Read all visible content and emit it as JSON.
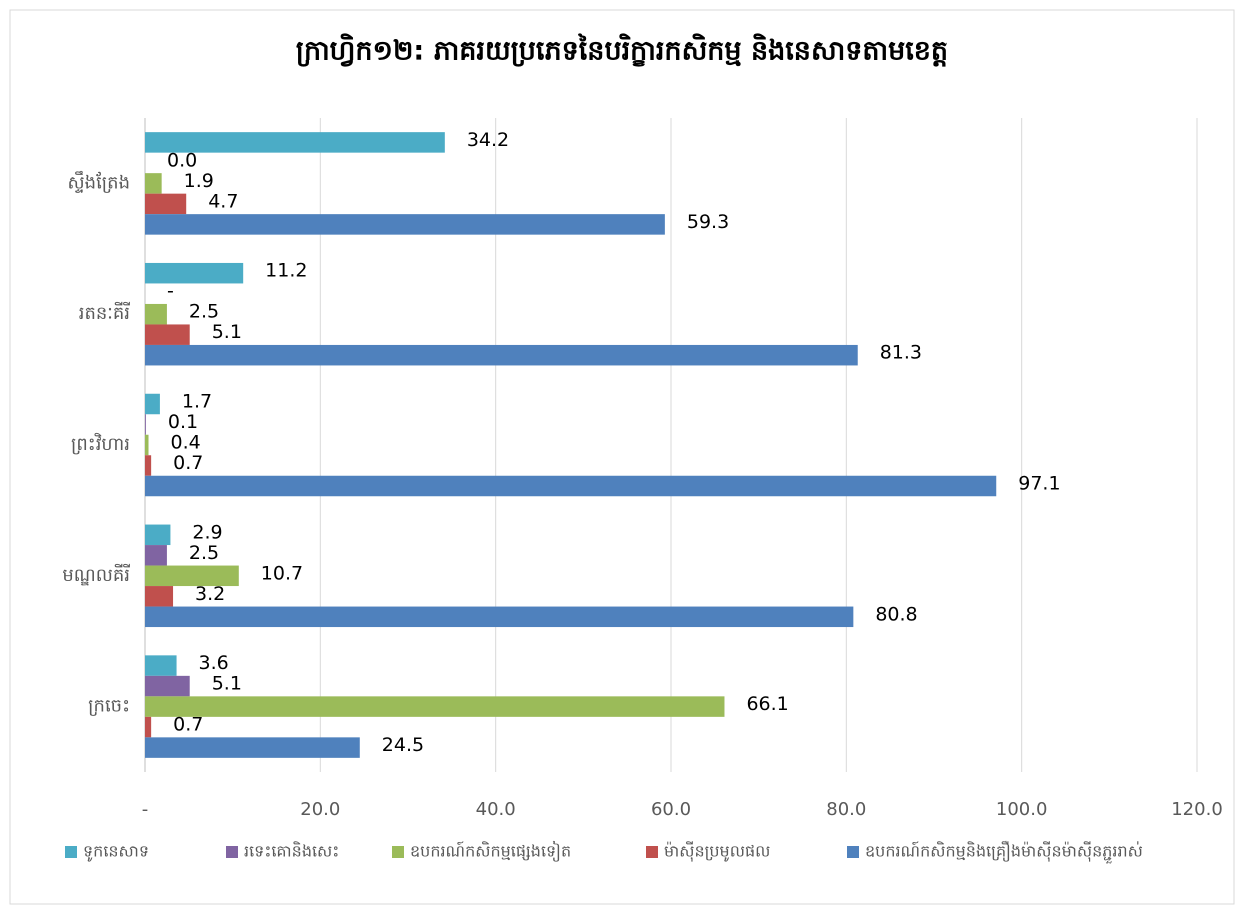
{
  "chart_data": {
    "type": "hbar",
    "title": "ក្រាហ្វិក១២: ភាគរយប្រភេទនៃបរិក្ខារកសិកម្ម និងនេសាទតាមខេត្ត",
    "categories": [
      "ស្ទឹងត្រែង",
      "រតនៈគីរី",
      "ព្រះវិហារ",
      "មណ្ឌលគីរី",
      "ក្រចេះ"
    ],
    "series": [
      {
        "name": "ទូកនេសាទ",
        "color": "#4bacc6",
        "values": [
          34.2,
          11.2,
          1.7,
          2.9,
          3.6
        ],
        "value_labels": [
          "34.2",
          "11.2",
          "1.7",
          "2.9",
          "3.6"
        ]
      },
      {
        "name": "រទេះគោនិងសេះ",
        "color": "#8064a2",
        "values": [
          0,
          0,
          0.1,
          2.5,
          5.1
        ],
        "value_labels": [
          "0.0",
          "-",
          "0.1",
          "2.5",
          "5.1"
        ]
      },
      {
        "name": "ឧបករណ៍កសិកម្មផ្សេងទៀត",
        "color": "#9bbb59",
        "values": [
          1.9,
          2.5,
          0.4,
          10.7,
          66.1
        ],
        "value_labels": [
          "1.9",
          "2.5",
          "0.4",
          "10.7",
          "66.1"
        ]
      },
      {
        "name": "ម៉ាស៊ីនប្រមូលផល",
        "color": "#c0504d",
        "values": [
          4.7,
          5.1,
          0.7,
          3.2,
          0.7
        ],
        "value_labels": [
          "4.7",
          "5.1",
          "0.7",
          "3.2",
          "0.7"
        ]
      },
      {
        "name": "ឧបករណ៍កសិកម្មនិងគ្រឿងម៉ាស៊ីនម៉ាស៊ីនភ្ជួររាស់",
        "color": "#4f81bd",
        "values": [
          59.3,
          81.3,
          97.1,
          80.8,
          24.5
        ],
        "value_labels": [
          "59.3",
          "81.3",
          "97.1",
          "80.8",
          "24.5"
        ]
      }
    ],
    "xlim": [
      0,
      120
    ],
    "xticks": [
      {
        "value": 0,
        "label": "-"
      },
      {
        "value": 20,
        "label": "20.0"
      },
      {
        "value": 40,
        "label": "40.0"
      },
      {
        "value": 60,
        "label": "60.0"
      },
      {
        "value": 80,
        "label": "80.0"
      },
      {
        "value": 100,
        "label": "100.0"
      },
      {
        "value": 120,
        "label": "120.0"
      }
    ],
    "grid": true,
    "legend": "bottom"
  }
}
